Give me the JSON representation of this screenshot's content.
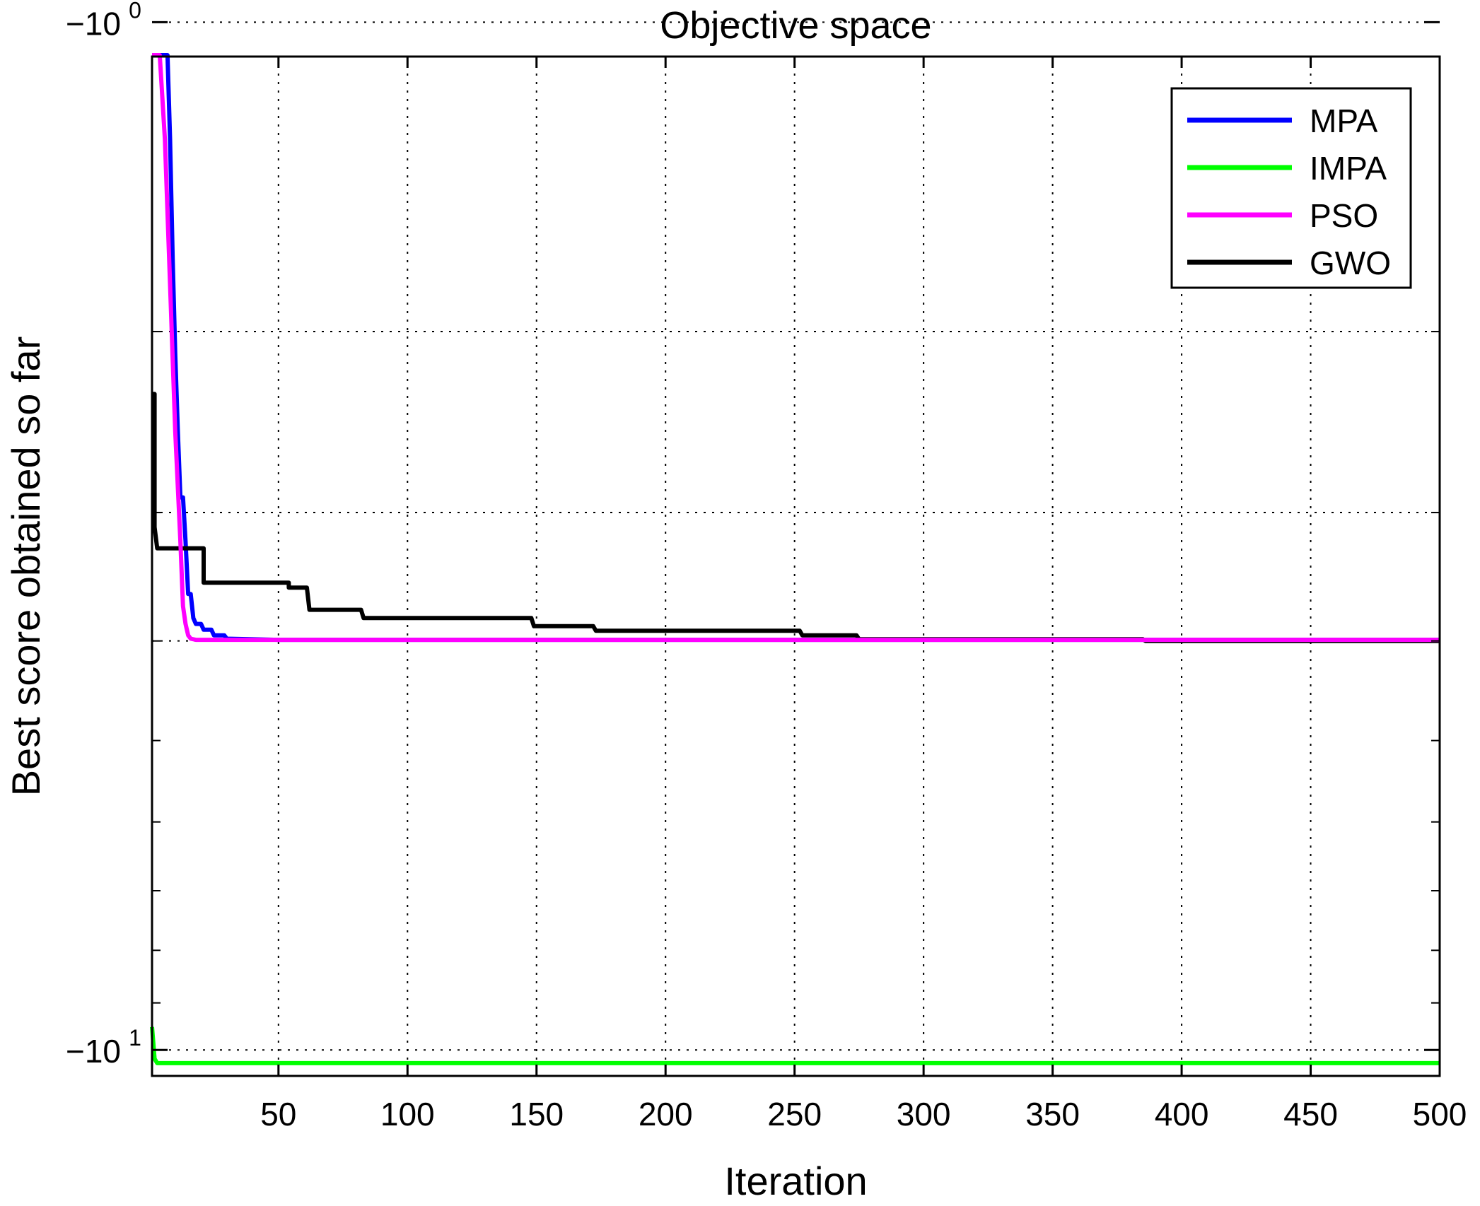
{
  "chart_data": {
    "type": "line",
    "title": "Objective space",
    "xlabel": "Iteration",
    "ylabel": "Best score obtained so far",
    "xlim": [
      1,
      500
    ],
    "ylim": [
      -1.08,
      -10.6
    ],
    "yscale": "log (negative values, magnitude)",
    "xticks": [
      50,
      100,
      150,
      200,
      250,
      300,
      350,
      400,
      450,
      500
    ],
    "xtick_labels": [
      "50",
      "100",
      "150",
      "200",
      "250",
      "300",
      "350",
      "400",
      "450",
      "500"
    ],
    "ytick_values": [
      -1,
      -10
    ],
    "ytick_labels": [
      {
        "base": "−10",
        "exp": "0"
      },
      {
        "base": "−10",
        "exp": "1"
      }
    ],
    "grid": "dotted",
    "legend_position": "top-right",
    "series": [
      {
        "name": "MPA",
        "color": "#0000ff",
        "points": [
          [
            1,
            -0.85
          ],
          [
            6,
            -0.85
          ],
          [
            7,
            -0.88
          ],
          [
            8,
            -1.3
          ],
          [
            9,
            -1.7
          ],
          [
            10,
            -2.1
          ],
          [
            11,
            -2.5
          ],
          [
            12,
            -2.9
          ],
          [
            13,
            -2.9
          ],
          [
            14,
            -3.2
          ],
          [
            15,
            -3.6
          ],
          [
            16,
            -3.6
          ],
          [
            17,
            -3.8
          ],
          [
            18,
            -3.85
          ],
          [
            20,
            -3.85
          ],
          [
            21,
            -3.9
          ],
          [
            24,
            -3.9
          ],
          [
            25,
            -3.95
          ],
          [
            29,
            -3.95
          ],
          [
            30,
            -3.98
          ],
          [
            50,
            -3.99
          ],
          [
            500,
            -3.99
          ]
        ]
      },
      {
        "name": "IMPA",
        "color": "#00ff00",
        "points": [
          [
            1,
            -9.5
          ],
          [
            2,
            -10.2
          ],
          [
            3,
            -10.3
          ],
          [
            500,
            -10.3
          ]
        ]
      },
      {
        "name": "PSO",
        "color": "#ff00ff",
        "points": [
          [
            1,
            -0.91
          ],
          [
            3,
            -0.93
          ],
          [
            4,
            -1.0
          ],
          [
            6,
            -1.3
          ],
          [
            8,
            -1.8
          ],
          [
            10,
            -2.5
          ],
          [
            12,
            -3.2
          ],
          [
            13,
            -3.7
          ],
          [
            14,
            -3.85
          ],
          [
            15,
            -3.95
          ],
          [
            16,
            -3.98
          ],
          [
            18,
            -3.99
          ],
          [
            500,
            -3.99
          ]
        ]
      },
      {
        "name": "GWO",
        "color": "#000000",
        "points": [
          [
            1,
            -2.3
          ],
          [
            2,
            -2.3
          ],
          [
            2,
            -3.1
          ],
          [
            3,
            -3.25
          ],
          [
            21,
            -3.25
          ],
          [
            21,
            -3.51
          ],
          [
            54,
            -3.51
          ],
          [
            54,
            -3.55
          ],
          [
            61,
            -3.55
          ],
          [
            62,
            -3.73
          ],
          [
            82,
            -3.73
          ],
          [
            83,
            -3.8
          ],
          [
            148,
            -3.8
          ],
          [
            149,
            -3.87
          ],
          [
            172,
            -3.87
          ],
          [
            173,
            -3.91
          ],
          [
            252,
            -3.91
          ],
          [
            253,
            -3.95
          ],
          [
            274,
            -3.95
          ],
          [
            275,
            -3.985
          ],
          [
            385,
            -3.985
          ],
          [
            386,
            -4.0
          ],
          [
            500,
            -4.0
          ]
        ]
      }
    ]
  }
}
